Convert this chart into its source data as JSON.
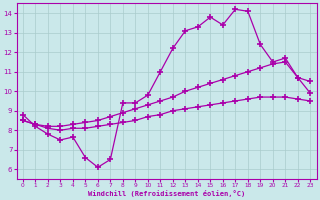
{
  "background_color": "#cae8ea",
  "grid_color": "#aacccc",
  "line_color": "#aa00aa",
  "marker": "+",
  "markersize": 4,
  "linewidth": 0.9,
  "xlabel": "Windchill (Refroidissement éolien,°C)",
  "xlim": [
    -0.5,
    23.5
  ],
  "ylim": [
    5.5,
    14.5
  ],
  "xticks": [
    0,
    1,
    2,
    3,
    4,
    5,
    6,
    7,
    8,
    9,
    10,
    11,
    12,
    13,
    14,
    15,
    16,
    17,
    18,
    19,
    20,
    21,
    22,
    23
  ],
  "yticks": [
    6,
    7,
    8,
    9,
    10,
    11,
    12,
    13,
    14
  ],
  "line1_x": [
    0,
    1,
    2,
    3,
    4,
    5,
    6,
    7,
    8,
    9,
    10,
    11,
    12,
    13,
    14,
    15,
    16,
    17,
    18,
    19,
    20,
    21,
    22,
    23
  ],
  "line1_y": [
    8.8,
    8.2,
    7.8,
    7.5,
    7.65,
    6.6,
    6.1,
    6.5,
    9.4,
    9.4,
    9.8,
    11.0,
    12.2,
    13.1,
    13.3,
    13.8,
    13.4,
    14.2,
    14.1,
    12.4,
    11.5,
    11.7,
    10.7,
    9.9
  ],
  "line2_x": [
    0,
    1,
    2,
    3,
    4,
    5,
    6,
    7,
    8,
    9,
    10,
    11,
    12,
    13,
    14,
    15,
    16,
    17,
    18,
    19,
    20,
    21,
    22,
    23
  ],
  "line2_y": [
    8.5,
    8.3,
    8.2,
    8.2,
    8.3,
    8.4,
    8.5,
    8.7,
    8.9,
    9.1,
    9.3,
    9.5,
    9.7,
    10.0,
    10.2,
    10.4,
    10.6,
    10.8,
    11.0,
    11.2,
    11.4,
    11.5,
    10.7,
    10.5
  ],
  "line3_x": [
    0,
    1,
    2,
    3,
    4,
    5,
    6,
    7,
    8,
    9,
    10,
    11,
    12,
    13,
    14,
    15,
    16,
    17,
    18,
    19,
    20,
    21,
    22,
    23
  ],
  "line3_y": [
    8.5,
    8.3,
    8.1,
    8.0,
    8.1,
    8.1,
    8.2,
    8.3,
    8.4,
    8.5,
    8.7,
    8.8,
    9.0,
    9.1,
    9.2,
    9.3,
    9.4,
    9.5,
    9.6,
    9.7,
    9.7,
    9.7,
    9.6,
    9.5
  ]
}
